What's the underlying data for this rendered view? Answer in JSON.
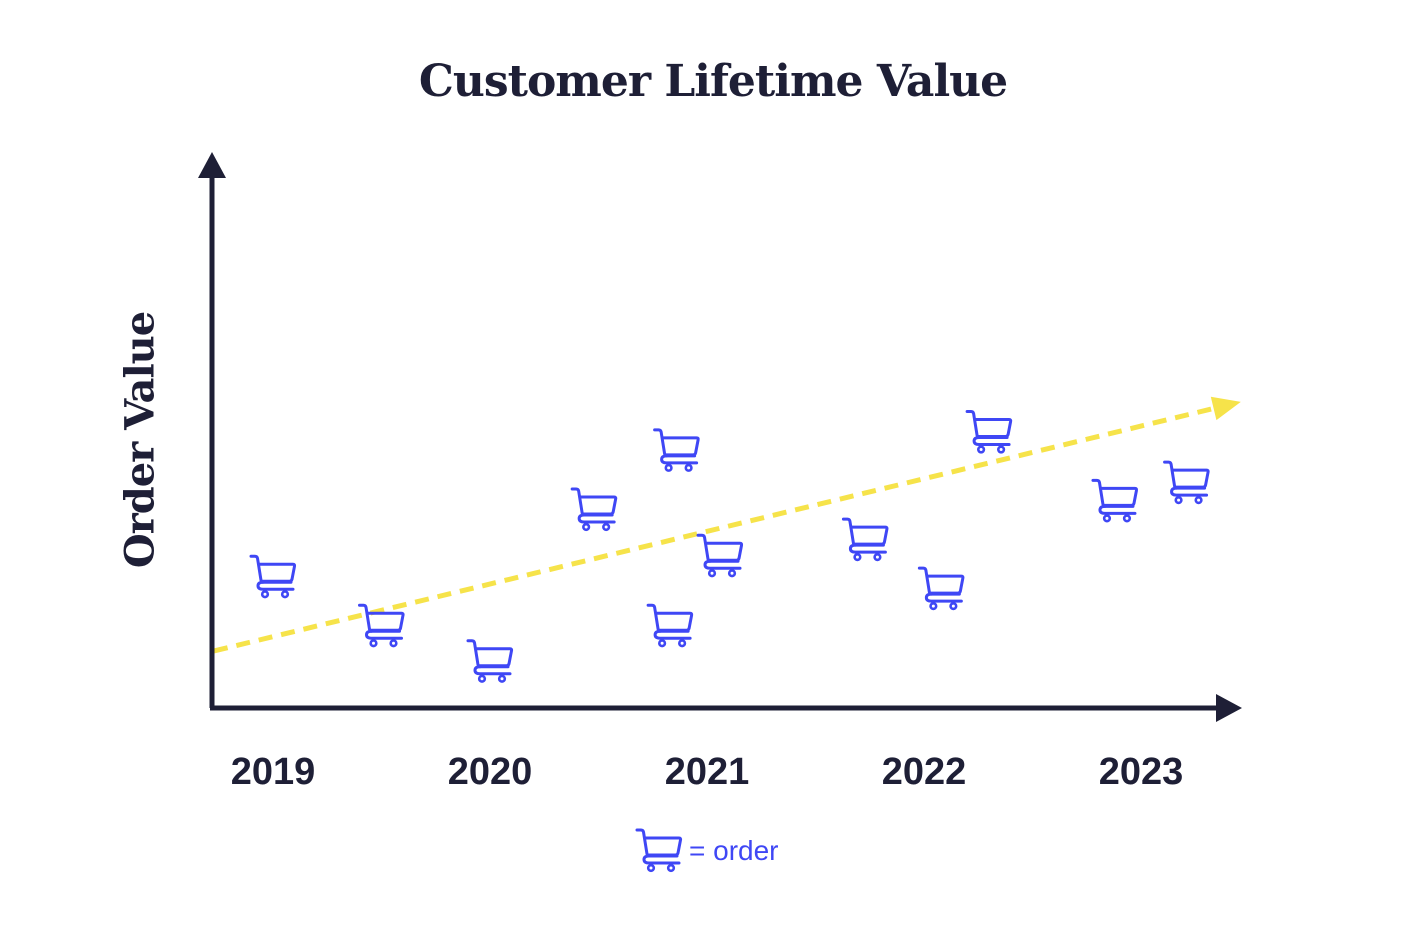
{
  "chart_data": {
    "type": "scatter",
    "title": "Customer Lifetime Value",
    "xlabel": "",
    "ylabel": "Order Value",
    "xticks": [
      "2019",
      "2020",
      "2021",
      "2022",
      "2023"
    ],
    "xlim": [
      2018.72,
      2023.46
    ],
    "ylim": [
      0,
      100
    ],
    "grid": false,
    "marker": "shopping-cart",
    "points": [
      {
        "x": 2019.0,
        "y": 24.3
      },
      {
        "x": 2019.5,
        "y": 15.2
      },
      {
        "x": 2020.0,
        "y": 8.6
      },
      {
        "x": 2020.48,
        "y": 36.8
      },
      {
        "x": 2020.86,
        "y": 47.8
      },
      {
        "x": 2020.83,
        "y": 15.2
      },
      {
        "x": 2021.06,
        "y": 28.2
      },
      {
        "x": 2021.73,
        "y": 31.2
      },
      {
        "x": 2022.08,
        "y": 22.1
      },
      {
        "x": 2022.3,
        "y": 51.2
      },
      {
        "x": 2022.88,
        "y": 38.4
      },
      {
        "x": 2023.21,
        "y": 41.8
      }
    ],
    "trend": {
      "x": [
        2018.72,
        2023.46
      ],
      "y": [
        10.6,
        56.9
      ],
      "style": "dashed-arrow"
    },
    "legend": {
      "label": "= order",
      "position": "bottom-center"
    },
    "colors": {
      "marker": "#3f47f5",
      "trend": "#f6e34a",
      "axis": "#1e1f36"
    }
  }
}
